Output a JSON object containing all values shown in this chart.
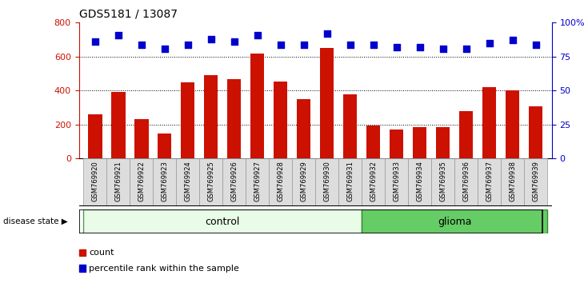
{
  "title": "GDS5181 / 13087",
  "samples": [
    "GSM769920",
    "GSM769921",
    "GSM769922",
    "GSM769923",
    "GSM769924",
    "GSM769925",
    "GSM769926",
    "GSM769927",
    "GSM769928",
    "GSM769929",
    "GSM769930",
    "GSM769931",
    "GSM769932",
    "GSM769933",
    "GSM769934",
    "GSM769935",
    "GSM769936",
    "GSM769937",
    "GSM769938",
    "GSM769939"
  ],
  "counts": [
    260,
    390,
    230,
    145,
    450,
    490,
    465,
    620,
    455,
    350,
    650,
    380,
    195,
    170,
    185,
    185,
    280,
    420,
    400,
    305
  ],
  "percentile_ranks": [
    86,
    91,
    84,
    81,
    84,
    88,
    86,
    91,
    84,
    84,
    92,
    84,
    84,
    82,
    82,
    81,
    81,
    85,
    87,
    84
  ],
  "control_group": [
    0,
    11
  ],
  "glioma_group": [
    12,
    19
  ],
  "bar_color": "#cc1100",
  "dot_color": "#0000cc",
  "control_bg_light": "#e8fce8",
  "control_bg_dark": "#66cc66",
  "glioma_bg": "#66cc66",
  "control_border": "#559955",
  "glioma_border": "#338833",
  "control_label": "control",
  "glioma_label": "glioma",
  "disease_state_label": "disease state",
  "legend_count": "count",
  "legend_pct": "percentile rank within the sample",
  "ylim_left": [
    0,
    800
  ],
  "yticks_left": [
    0,
    200,
    400,
    600,
    800
  ],
  "ytick_labels_right": [
    "0",
    "25",
    "50",
    "75",
    "100%"
  ],
  "yticks_right_pct": [
    0,
    25,
    50,
    75,
    100
  ],
  "grid_lines": [
    200,
    400,
    600
  ],
  "bar_width": 0.6
}
